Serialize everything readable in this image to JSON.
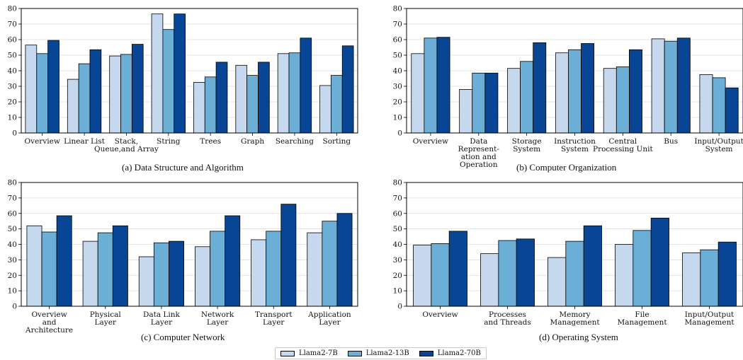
{
  "colors": {
    "series": [
      "#c6d8ee",
      "#6baed6",
      "#084594"
    ],
    "grid": "#dcdcdc",
    "axis": "#000000"
  },
  "legend": [
    {
      "name": "Llama2-7B",
      "color": "#c6d8ee"
    },
    {
      "name": "Llama2-13B",
      "color": "#6baed6"
    },
    {
      "name": "Llama2-70B",
      "color": "#084594"
    }
  ],
  "captions": {
    "a": "(a) Data Structure and Algorithm",
    "b": "(b) Computer Organization",
    "c": "(c) Computer Network",
    "d": "(d) Operating System"
  },
  "chart_data": [
    {
      "type": "bar",
      "title": "(a) Data Structure and Algorithm",
      "ylim": [
        0,
        80
      ],
      "yticks": [
        0,
        10,
        20,
        30,
        40,
        50,
        60,
        70,
        80
      ],
      "grid": true,
      "legend_position": "bottom-center",
      "categories": [
        [
          "Overview"
        ],
        [
          "Linear List"
        ],
        [
          "Stack,",
          "Queue,and Array"
        ],
        [
          "String"
        ],
        [
          "Trees"
        ],
        [
          "Graph"
        ],
        [
          "Searching"
        ],
        [
          "Sorting"
        ]
      ],
      "series": [
        {
          "name": "Llama2-7B",
          "values": [
            56.5,
            34.5,
            49.5,
            76.5,
            32.5,
            43.5,
            51.0,
            30.5
          ]
        },
        {
          "name": "Llama2-13B",
          "values": [
            51.0,
            44.5,
            50.5,
            66.5,
            36.0,
            37.0,
            51.5,
            37.0
          ]
        },
        {
          "name": "Llama2-70B",
          "values": [
            59.5,
            53.5,
            57.0,
            76.5,
            45.5,
            45.5,
            61.0,
            56.0
          ]
        }
      ]
    },
    {
      "type": "bar",
      "title": "(b) Computer Organization",
      "ylim": [
        0,
        80
      ],
      "yticks": [
        0,
        10,
        20,
        30,
        40,
        50,
        60,
        70,
        80
      ],
      "grid": true,
      "legend_position": "bottom-center",
      "categories": [
        [
          "Overview"
        ],
        [
          "Data",
          "Represent-",
          "ation and",
          "Operation"
        ],
        [
          "Storage",
          "System"
        ],
        [
          "Instruction",
          "System"
        ],
        [
          "Central",
          "Processing Unit"
        ],
        [
          "Bus"
        ],
        [
          "Input/Output",
          "System"
        ]
      ],
      "series": [
        {
          "name": "Llama2-7B",
          "values": [
            51.0,
            28.0,
            41.5,
            51.5,
            41.5,
            60.5,
            37.5
          ]
        },
        {
          "name": "Llama2-13B",
          "values": [
            61.0,
            38.5,
            46.0,
            53.5,
            42.5,
            59.0,
            35.5
          ]
        },
        {
          "name": "Llama2-70B",
          "values": [
            61.5,
            38.5,
            58.0,
            57.5,
            53.5,
            61.0,
            29.0
          ]
        }
      ]
    },
    {
      "type": "bar",
      "title": "(c) Computer Network",
      "ylim": [
        0,
        80
      ],
      "yticks": [
        0,
        10,
        20,
        30,
        40,
        50,
        60,
        70,
        80
      ],
      "grid": true,
      "legend_position": "bottom-center",
      "categories": [
        [
          "Overview",
          "and",
          "Architecture"
        ],
        [
          "Physical",
          "Layer"
        ],
        [
          "Data Link",
          "Layer"
        ],
        [
          "Network",
          "Layer"
        ],
        [
          "Transport",
          "Layer"
        ],
        [
          "Application",
          "Layer"
        ]
      ],
      "series": [
        {
          "name": "Llama2-7B",
          "values": [
            52.0,
            42.0,
            32.0,
            38.5,
            43.0,
            47.5
          ]
        },
        {
          "name": "Llama2-13B",
          "values": [
            48.0,
            47.5,
            41.0,
            48.5,
            48.5,
            55.0
          ]
        },
        {
          "name": "Llama2-70B",
          "values": [
            58.5,
            52.0,
            42.0,
            58.5,
            66.0,
            60.0
          ]
        }
      ]
    },
    {
      "type": "bar",
      "title": "(d) Operating System",
      "ylim": [
        0,
        80
      ],
      "yticks": [
        0,
        10,
        20,
        30,
        40,
        50,
        60,
        70,
        80
      ],
      "grid": true,
      "legend_position": "bottom-center",
      "categories": [
        [
          "Overview"
        ],
        [
          "Processes",
          "and Threads"
        ],
        [
          "Memory",
          "Management"
        ],
        [
          "File",
          "Management"
        ],
        [
          "Input/Output",
          "Management"
        ]
      ],
      "series": [
        {
          "name": "Llama2-7B",
          "values": [
            39.5,
            34.0,
            31.5,
            40.0,
            34.5
          ]
        },
        {
          "name": "Llama2-13B",
          "values": [
            40.5,
            42.5,
            42.0,
            49.0,
            36.5
          ]
        },
        {
          "name": "Llama2-70B",
          "values": [
            48.5,
            43.5,
            52.0,
            57.0,
            41.5
          ]
        }
      ]
    }
  ]
}
